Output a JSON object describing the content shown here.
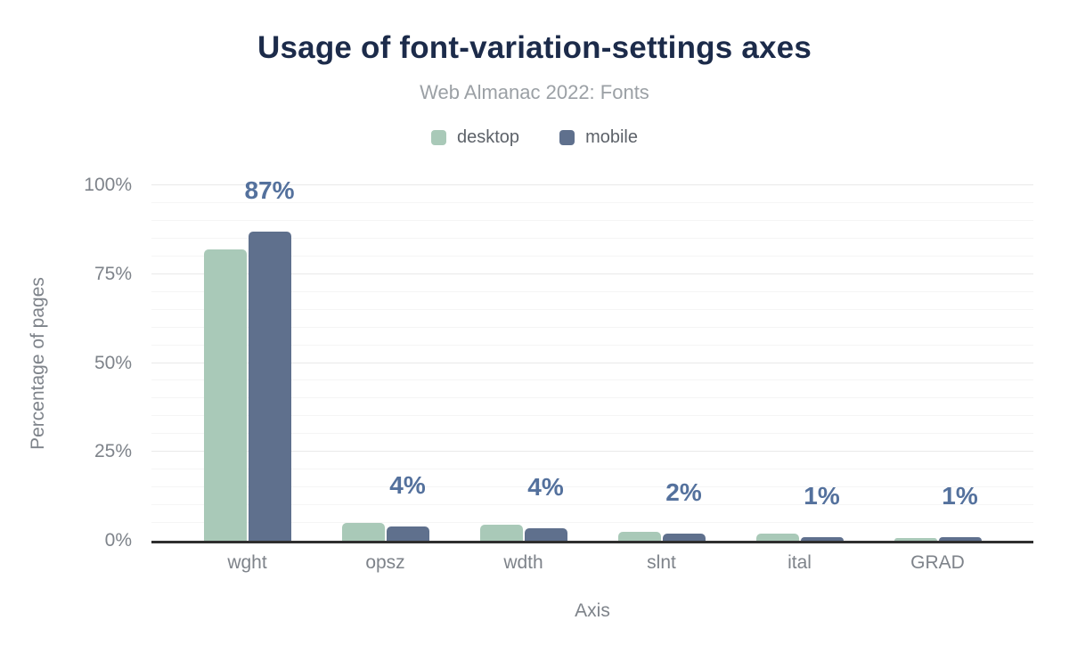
{
  "chart_data": {
    "type": "bar",
    "title": "Usage of font-variation-settings axes",
    "subtitle": "Web Almanac 2022: Fonts",
    "xlabel": "Axis",
    "ylabel": "Percentage of pages",
    "categories": [
      "wght",
      "opsz",
      "wdth",
      "slnt",
      "ital",
      "GRAD"
    ],
    "series": [
      {
        "name": "desktop",
        "color": "#a9c9b8",
        "values": [
          82,
          5,
          4.6,
          2.5,
          2.1,
          0.7
        ]
      },
      {
        "name": "mobile",
        "color": "#5f708d",
        "values": [
          87,
          4,
          3.5,
          1.9,
          1.1,
          1.0
        ]
      }
    ],
    "annotations": [
      "87%",
      "4%",
      "4%",
      "2%",
      "1%",
      "1%"
    ],
    "annotation_series": "mobile",
    "y_ticks": [
      {
        "label": "0%",
        "value": 0
      },
      {
        "label": "25%",
        "value": 25
      },
      {
        "label": "50%",
        "value": 50
      },
      {
        "label": "75%",
        "value": 75
      },
      {
        "label": "100%",
        "value": 100
      }
    ],
    "ylim": [
      0,
      100
    ],
    "grid": {
      "minor_step": 5,
      "major_step": 25,
      "grid_on": true
    },
    "legend_position": "top"
  },
  "colors": {
    "title": "#1c2b4a",
    "subtitle_text": "#9ba0a5",
    "legend_text": "#5d6269",
    "axis_text": "#7e838a",
    "annotation_text": "#54719d",
    "desktop_bar": "#a9c9b8",
    "mobile_bar": "#5f708d",
    "grid_minor": "#f5f5f5",
    "grid_major": "#e9e9e9",
    "baseline": "#2f2f2f",
    "background": "#ffffff"
  }
}
